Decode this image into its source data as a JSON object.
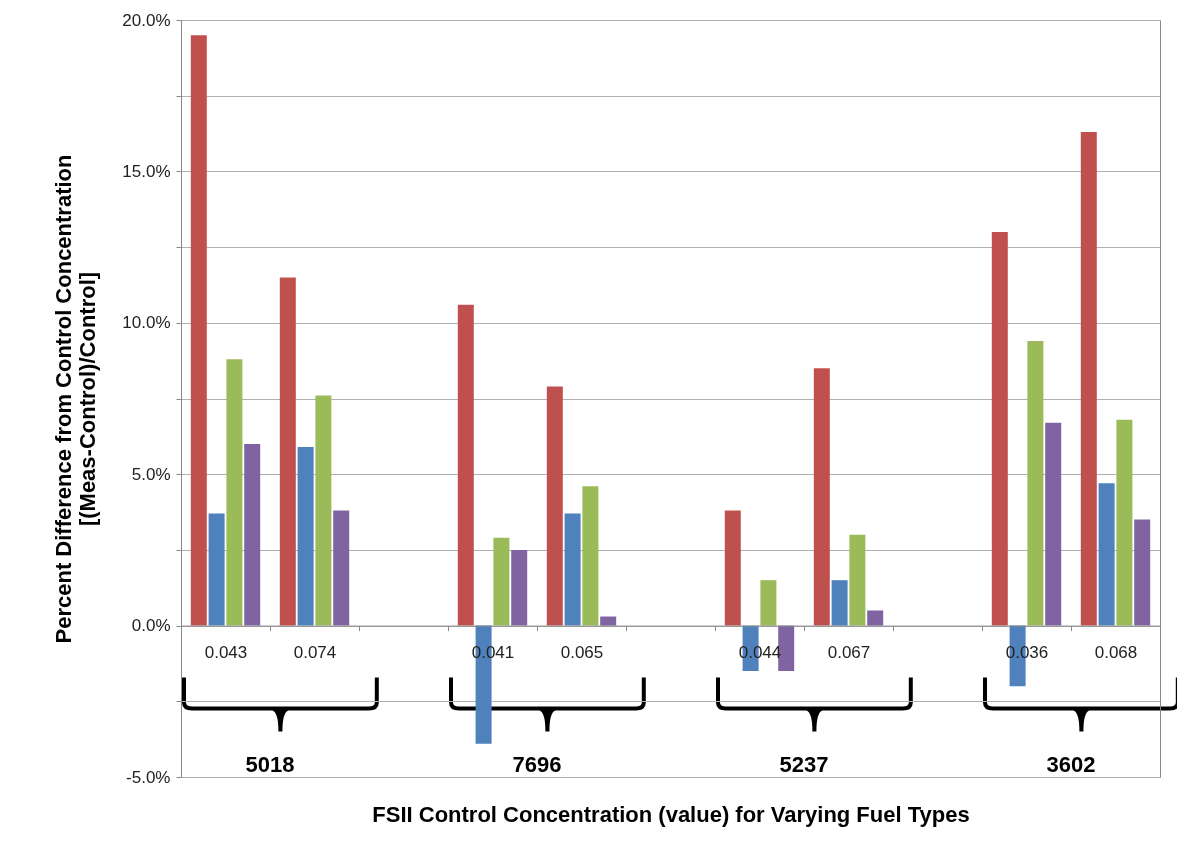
{
  "chart_data": {
    "type": "bar",
    "xlabel": "FSII Control Concentration (value) for Varying Fuel Types",
    "ylabel": "Percent Difference from Control Concentration\n[(Meas-Control)/Control]",
    "categories": [
      "0.043",
      "0.074",
      null,
      "0.041",
      "0.065",
      null,
      "0.044",
      "0.067",
      null,
      "0.036",
      "0.068"
    ],
    "series": [
      {
        "color": "#c0504d",
        "values": [
          19.5,
          11.5,
          null,
          10.6,
          7.9,
          null,
          3.8,
          8.5,
          null,
          13.0,
          16.3
        ]
      },
      {
        "color": "#4f81bd",
        "values": [
          3.7,
          5.9,
          null,
          -3.9,
          3.7,
          null,
          -1.5,
          1.5,
          null,
          -2.0,
          4.7
        ]
      },
      {
        "color": "#9bbb59",
        "values": [
          8.8,
          7.6,
          null,
          2.9,
          4.6,
          null,
          1.5,
          3.0,
          null,
          9.4,
          6.8
        ]
      },
      {
        "color": "#8064a2",
        "values": [
          6.0,
          3.8,
          null,
          2.5,
          0.3,
          null,
          -1.5,
          0.5,
          null,
          6.7,
          3.5
        ]
      }
    ],
    "annotations": [
      "5018",
      "7696",
      "5237",
      "3602"
    ],
    "ylim": [
      -5,
      20
    ],
    "yticks": [
      {
        "value": -5,
        "label": "-5.0%"
      },
      {
        "value": -2.5,
        "label": null
      },
      {
        "value": 0,
        "label": "0.0%"
      },
      {
        "value": 2.5,
        "label": null
      },
      {
        "value": 5,
        "label": "5.0%"
      },
      {
        "value": 7.5,
        "label": null
      },
      {
        "value": 10,
        "label": "10.0%"
      },
      {
        "value": 12.5,
        "label": null
      },
      {
        "value": 15,
        "label": "15.0%"
      },
      {
        "value": 17.5,
        "label": null
      },
      {
        "value": 20,
        "label": "20.0%"
      }
    ],
    "grid": true
  }
}
